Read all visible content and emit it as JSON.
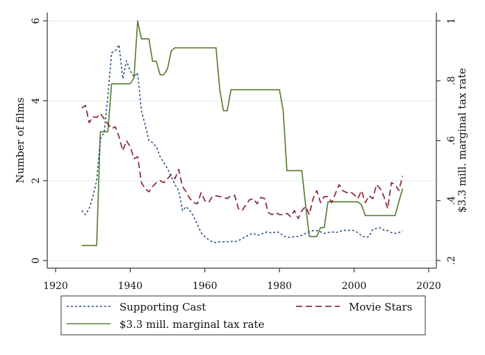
{
  "chart_data": {
    "type": "line",
    "title": "",
    "xlabel": "",
    "ylabel": "Number of films",
    "y2label": "$3.3 mill. marginal tax rate",
    "xlim": [
      1917,
      2022
    ],
    "ylim": [
      0,
      6.1
    ],
    "y2lim": [
      0.2,
      1.01
    ],
    "xticks": [
      1920,
      1940,
      1960,
      1980,
      2000,
      2020
    ],
    "xtick_labels": [
      "1920",
      "1940",
      "1960",
      "1980",
      "2000",
      "2020"
    ],
    "yticks": [
      0,
      2,
      4,
      6
    ],
    "ytick_labels": [
      "0",
      "2",
      "4",
      "6"
    ],
    "y2ticks": [
      0.2,
      0.4,
      0.6,
      0.8,
      1.0
    ],
    "y2tick_labels": [
      ".2",
      ".4",
      ".6",
      ".8",
      "1"
    ],
    "grid": true,
    "legend": "bottom",
    "series": [
      {
        "name": "Supporting Cast",
        "axis": "left",
        "style": "dotted",
        "color": "#2b4f7e",
        "x": [
          1927,
          1928,
          1929,
          1930,
          1931,
          1932,
          1933,
          1934,
          1935,
          1936,
          1937,
          1938,
          1939,
          1940,
          1941,
          1942,
          1943,
          1944,
          1945,
          1946,
          1947,
          1948,
          1949,
          1950,
          1951,
          1952,
          1953,
          1954,
          1955,
          1956,
          1957,
          1958,
          1959,
          1960,
          1961,
          1962,
          1963,
          1964,
          1965,
          1966,
          1967,
          1968,
          1969,
          1970,
          1971,
          1972,
          1973,
          1974,
          1975,
          1976,
          1977,
          1978,
          1979,
          1980,
          1981,
          1982,
          1983,
          1984,
          1985,
          1986,
          1987,
          1988,
          1989,
          1990,
          1991,
          1992,
          1993,
          1994,
          1995,
          1996,
          1997,
          1998,
          1999,
          2000,
          2001,
          2002,
          2003,
          2004,
          2005,
          2006,
          2007,
          2008,
          2009,
          2010,
          2011,
          2012,
          2013
        ],
        "values": [
          1.25,
          1.15,
          1.3,
          1.6,
          2.0,
          3.05,
          3.2,
          4.1,
          5.2,
          5.25,
          5.4,
          4.55,
          5.0,
          4.75,
          4.6,
          4.7,
          3.75,
          3.4,
          3.0,
          2.95,
          2.85,
          2.6,
          2.45,
          2.3,
          2.1,
          1.9,
          1.75,
          1.25,
          1.35,
          1.25,
          1.1,
          0.9,
          0.7,
          0.6,
          0.52,
          0.47,
          0.45,
          0.47,
          0.47,
          0.47,
          0.48,
          0.47,
          0.5,
          0.55,
          0.6,
          0.65,
          0.68,
          0.63,
          0.65,
          0.7,
          0.72,
          0.68,
          0.72,
          0.7,
          0.62,
          0.58,
          0.58,
          0.6,
          0.6,
          0.63,
          0.68,
          0.72,
          0.75,
          0.75,
          0.72,
          0.68,
          0.7,
          0.72,
          0.7,
          0.72,
          0.76,
          0.75,
          0.76,
          0.75,
          0.7,
          0.62,
          0.58,
          0.6,
          0.78,
          0.8,
          0.82,
          0.76,
          0.75,
          0.7,
          0.68,
          0.7,
          0.75
        ]
      },
      {
        "name": "Movie Stars",
        "axis": "left",
        "style": "dashed",
        "color": "#8b2f3c",
        "x": [
          1927,
          1928,
          1929,
          1930,
          1931,
          1932,
          1933,
          1934,
          1935,
          1936,
          1937,
          1938,
          1939,
          1940,
          1941,
          1942,
          1943,
          1944,
          1945,
          1946,
          1947,
          1948,
          1949,
          1950,
          1951,
          1952,
          1953,
          1954,
          1955,
          1956,
          1957,
          1958,
          1959,
          1960,
          1961,
          1962,
          1963,
          1964,
          1965,
          1966,
          1967,
          1968,
          1969,
          1970,
          1971,
          1972,
          1973,
          1974,
          1975,
          1976,
          1977,
          1978,
          1979,
          1980,
          1981,
          1982,
          1983,
          1984,
          1985,
          1986,
          1987,
          1988,
          1989,
          1990,
          1991,
          1992,
          1993,
          1994,
          1995,
          1996,
          1997,
          1998,
          1999,
          2000,
          2001,
          2002,
          2003,
          2004,
          2005,
          2006,
          2007,
          2008,
          2009,
          2010,
          2011,
          2012,
          2013
        ],
        "values": [
          3.82,
          3.88,
          3.45,
          3.6,
          3.58,
          3.68,
          3.55,
          3.42,
          3.3,
          3.35,
          3.1,
          2.75,
          3.0,
          2.85,
          2.55,
          2.6,
          1.95,
          1.8,
          1.72,
          1.85,
          1.95,
          2.0,
          1.95,
          2.05,
          2.15,
          2.05,
          2.28,
          1.85,
          1.72,
          1.55,
          1.45,
          1.42,
          1.7,
          1.5,
          1.45,
          1.6,
          1.62,
          1.6,
          1.58,
          1.55,
          1.62,
          1.63,
          1.3,
          1.25,
          1.4,
          1.52,
          1.55,
          1.42,
          1.58,
          1.55,
          1.2,
          1.15,
          1.2,
          1.15,
          1.15,
          1.18,
          1.1,
          1.25,
          1.05,
          1.25,
          1.35,
          1.15,
          1.55,
          1.75,
          1.45,
          1.6,
          1.6,
          1.45,
          1.68,
          1.9,
          1.75,
          1.7,
          1.72,
          1.65,
          1.55,
          1.75,
          1.45,
          1.62,
          1.55,
          1.9,
          1.8,
          1.6,
          1.3,
          1.95,
          1.9,
          1.75,
          2.12
        ]
      },
      {
        "name": "$3.3 mill. marginal tax rate",
        "axis": "right",
        "style": "solid",
        "color": "#5a7e36",
        "x": [
          1927,
          1928,
          1929,
          1930,
          1931,
          1932,
          1933,
          1934,
          1935,
          1936,
          1937,
          1938,
          1939,
          1940,
          1941,
          1942,
          1943,
          1944,
          1945,
          1946,
          1947,
          1948,
          1949,
          1950,
          1951,
          1952,
          1953,
          1954,
          1955,
          1956,
          1957,
          1958,
          1959,
          1960,
          1961,
          1962,
          1963,
          1964,
          1965,
          1966,
          1967,
          1968,
          1969,
          1970,
          1971,
          1972,
          1973,
          1974,
          1975,
          1976,
          1977,
          1978,
          1979,
          1980,
          1981,
          1982,
          1983,
          1984,
          1985,
          1986,
          1987,
          1988,
          1989,
          1990,
          1991,
          1992,
          1993,
          1994,
          1995,
          1996,
          1997,
          1998,
          1999,
          2000,
          2001,
          2002,
          2003,
          2004,
          2005,
          2006,
          2007,
          2008,
          2009,
          2010,
          2011,
          2012,
          2013
        ],
        "values": [
          0.25,
          0.25,
          0.25,
          0.25,
          0.25,
          0.63,
          0.63,
          0.63,
          0.79,
          0.79,
          0.79,
          0.79,
          0.79,
          0.79,
          0.81,
          1.0,
          0.94,
          0.94,
          0.94,
          0.865,
          0.865,
          0.82,
          0.82,
          0.84,
          0.9,
          0.91,
          0.91,
          0.91,
          0.91,
          0.91,
          0.91,
          0.91,
          0.91,
          0.91,
          0.91,
          0.91,
          0.91,
          0.77,
          0.7,
          0.7,
          0.77,
          0.77,
          0.77,
          0.77,
          0.77,
          0.77,
          0.77,
          0.77,
          0.77,
          0.77,
          0.77,
          0.77,
          0.77,
          0.77,
          0.7,
          0.5,
          0.5,
          0.5,
          0.5,
          0.5,
          0.385,
          0.28,
          0.28,
          0.28,
          0.31,
          0.31,
          0.396,
          0.396,
          0.396,
          0.396,
          0.396,
          0.396,
          0.396,
          0.396,
          0.396,
          0.386,
          0.35,
          0.35,
          0.35,
          0.35,
          0.35,
          0.35,
          0.35,
          0.35,
          0.35,
          0.396,
          0.44
        ]
      }
    ]
  }
}
